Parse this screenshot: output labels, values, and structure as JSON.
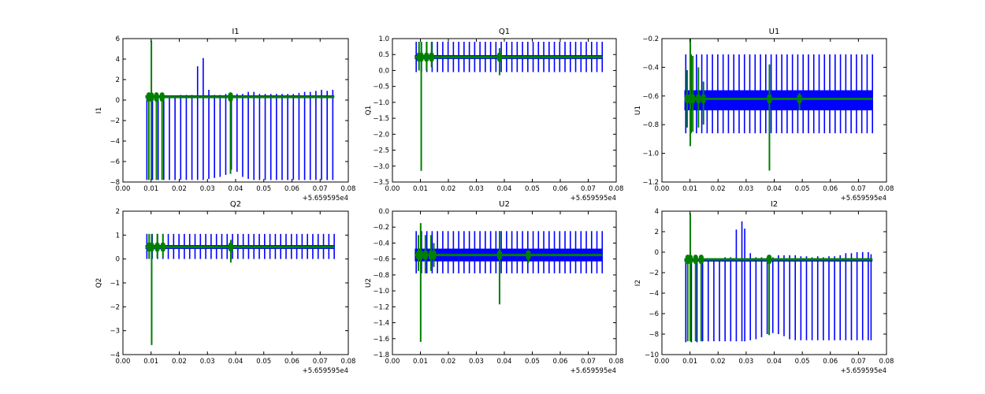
{
  "colors": {
    "series_a": "#0000ff",
    "series_b": "#008000",
    "axes": "#000000",
    "background": "#ffffff"
  },
  "x_offset_text": "+5.659595e4",
  "chart_data": [
    {
      "type": "line",
      "title": "I1",
      "ylabel": "I1",
      "xlim": [
        0.0,
        0.08
      ],
      "ylim": [
        -8,
        6
      ],
      "x_ticks": [
        "0.00",
        "0.01",
        "0.02",
        "0.03",
        "0.04",
        "0.05",
        "0.06",
        "0.07",
        "0.08"
      ],
      "y_ticks": [
        "−8",
        "−6",
        "−4",
        "−2",
        "0",
        "2",
        "4",
        "6"
      ],
      "x_range": [
        0.008,
        0.075
      ],
      "series": [
        {
          "name": "blue",
          "color": "#0000ff",
          "baseline": 0.35,
          "spikes": [
            {
              "x": 0.0085,
              "lo": -7.8,
              "hi": 0.3
            },
            {
              "x": 0.0105,
              "lo": -7.8,
              "hi": 0.3
            },
            {
              "x": 0.0125,
              "lo": -7.8,
              "hi": 0.3
            },
            {
              "x": 0.0145,
              "lo": -7.8,
              "hi": 0.3
            },
            {
              "x": 0.0165,
              "lo": -7.8,
              "hi": 0.3
            },
            {
              "x": 0.0185,
              "lo": -7.8,
              "hi": 0.4
            },
            {
              "x": 0.0205,
              "lo": -7.8,
              "hi": 0.5
            },
            {
              "x": 0.0225,
              "lo": -7.8,
              "hi": 0.5
            },
            {
              "x": 0.0245,
              "lo": -7.8,
              "hi": 0.5
            },
            {
              "x": 0.0265,
              "lo": -7.8,
              "hi": 3.3
            },
            {
              "x": 0.0285,
              "lo": -7.8,
              "hi": 4.1
            },
            {
              "x": 0.0305,
              "lo": -7.7,
              "hi": 1.0
            },
            {
              "x": 0.0325,
              "lo": -7.6,
              "hi": 0.5
            },
            {
              "x": 0.0345,
              "lo": -7.5,
              "hi": 0.5
            },
            {
              "x": 0.0365,
              "lo": -7.3,
              "hi": 0.6
            },
            {
              "x": 0.0385,
              "lo": -6.8,
              "hi": 0.6
            },
            {
              "x": 0.0405,
              "lo": -7.0,
              "hi": 0.6
            },
            {
              "x": 0.0425,
              "lo": -7.5,
              "hi": 0.6
            },
            {
              "x": 0.0445,
              "lo": -7.7,
              "hi": 0.8
            },
            {
              "x": 0.0465,
              "lo": -7.8,
              "hi": 0.8
            },
            {
              "x": 0.0485,
              "lo": -7.8,
              "hi": 0.6
            },
            {
              "x": 0.0505,
              "lo": -7.8,
              "hi": 0.6
            },
            {
              "x": 0.0525,
              "lo": -7.8,
              "hi": 0.6
            },
            {
              "x": 0.0545,
              "lo": -7.8,
              "hi": 0.6
            },
            {
              "x": 0.0565,
              "lo": -7.8,
              "hi": 0.6
            },
            {
              "x": 0.0585,
              "lo": -7.8,
              "hi": 0.6
            },
            {
              "x": 0.0605,
              "lo": -7.8,
              "hi": 0.6
            },
            {
              "x": 0.0625,
              "lo": -7.8,
              "hi": 0.7
            },
            {
              "x": 0.0645,
              "lo": -7.8,
              "hi": 0.8
            },
            {
              "x": 0.0665,
              "lo": -7.8,
              "hi": 0.8
            },
            {
              "x": 0.0685,
              "lo": -7.8,
              "hi": 0.9
            },
            {
              "x": 0.0705,
              "lo": -7.8,
              "hi": 1.0
            },
            {
              "x": 0.0725,
              "lo": -7.8,
              "hi": 0.9
            },
            {
              "x": 0.0745,
              "lo": -7.8,
              "hi": 1.0
            }
          ]
        },
        {
          "name": "green",
          "color": "#008000",
          "baseline": 0.3,
          "spikes": [
            {
              "x": 0.0092,
              "lo": -7.8,
              "hi": 0.5
            },
            {
              "x": 0.0101,
              "lo": -7.8,
              "hi": 5.8
            },
            {
              "x": 0.0119,
              "lo": -7.8,
              "hi": 0.5
            },
            {
              "x": 0.0139,
              "lo": -7.8,
              "hi": 0.5
            },
            {
              "x": 0.0382,
              "lo": -7.2,
              "hi": 0.6
            }
          ]
        }
      ]
    },
    {
      "type": "line",
      "title": "Q1",
      "ylabel": "Q1",
      "xlim": [
        0.0,
        0.08
      ],
      "ylim": [
        -3.5,
        1.0
      ],
      "x_ticks": [
        "0.00",
        "0.01",
        "0.02",
        "0.03",
        "0.04",
        "0.05",
        "0.06",
        "0.07",
        "0.08"
      ],
      "y_ticks": [
        "−3.5",
        "−3.0",
        "−2.5",
        "−2.0",
        "−1.5",
        "−1.0",
        "−0.5",
        "0.0",
        "0.5",
        "1.0"
      ],
      "x_range": [
        0.008,
        0.075
      ],
      "series": [
        {
          "name": "blue",
          "color": "#0000ff",
          "baseline": 0.42,
          "band": [
            0.36,
            0.48
          ],
          "spikes_auto": {
            "start": 0.0085,
            "step": 0.0019,
            "lo": -0.05,
            "hi": 0.9
          }
        },
        {
          "name": "green",
          "color": "#008000",
          "baseline": 0.42,
          "spikes": [
            {
              "x": 0.0095,
              "lo": 0.0,
              "hi": 0.9
            },
            {
              "x": 0.0103,
              "lo": -3.15,
              "hi": 0.9
            },
            {
              "x": 0.0122,
              "lo": 0.0,
              "hi": 0.9
            },
            {
              "x": 0.014,
              "lo": 0.1,
              "hi": 0.9
            },
            {
              "x": 0.0383,
              "lo": -0.15,
              "hi": 0.7
            }
          ]
        }
      ]
    },
    {
      "type": "line",
      "title": "U1",
      "ylabel": "U1",
      "xlim": [
        0.0,
        0.08
      ],
      "ylim": [
        -1.2,
        -0.2
      ],
      "x_ticks": [
        "0.00",
        "0.01",
        "0.02",
        "0.03",
        "0.04",
        "0.05",
        "0.06",
        "0.07",
        "0.08"
      ],
      "y_ticks": [
        "−1.2",
        "−1.0",
        "−0.8",
        "−0.6",
        "−0.4",
        "−0.2"
      ],
      "x_range": [
        0.008,
        0.075
      ],
      "series": [
        {
          "name": "blue",
          "color": "#0000ff",
          "baseline": -0.63,
          "band": [
            -0.7,
            -0.56
          ],
          "spikes_auto": {
            "start": 0.0085,
            "step": 0.0019,
            "lo": -0.86,
            "hi": -0.31
          }
        },
        {
          "name": "green",
          "color": "#008000",
          "baseline": -0.62,
          "spikes": [
            {
              "x": 0.009,
              "lo": -0.82,
              "hi": -0.42
            },
            {
              "x": 0.0101,
              "lo": -0.95,
              "hi": -0.2
            },
            {
              "x": 0.011,
              "lo": -0.85,
              "hi": -0.32
            },
            {
              "x": 0.013,
              "lo": -0.82,
              "hi": -0.4
            },
            {
              "x": 0.0148,
              "lo": -0.8,
              "hi": -0.5
            },
            {
              "x": 0.0383,
              "lo": -1.12,
              "hi": -0.38
            },
            {
              "x": 0.049,
              "lo": -0.7,
              "hi": -0.58
            }
          ]
        }
      ]
    },
    {
      "type": "line",
      "title": "Q2",
      "ylabel": "Q2",
      "xlim": [
        0.0,
        0.08
      ],
      "ylim": [
        -4,
        2
      ],
      "x_ticks": [
        "0.00",
        "0.01",
        "0.02",
        "0.03",
        "0.04",
        "0.05",
        "0.06",
        "0.07",
        "0.08"
      ],
      "y_ticks": [
        "−4",
        "−3",
        "−2",
        "−1",
        "0",
        "1",
        "2"
      ],
      "x_range": [
        0.008,
        0.075
      ],
      "series": [
        {
          "name": "blue",
          "color": "#0000ff",
          "baseline": 0.5,
          "band": [
            0.42,
            0.58
          ],
          "spikes_auto": {
            "start": 0.0085,
            "step": 0.0019,
            "lo": 0.0,
            "hi": 1.05
          }
        },
        {
          "name": "green",
          "color": "#008000",
          "baseline": 0.5,
          "spikes": [
            {
              "x": 0.0093,
              "lo": 0.0,
              "hi": 1.05
            },
            {
              "x": 0.0102,
              "lo": -3.6,
              "hi": 1.05
            },
            {
              "x": 0.0122,
              "lo": 0.05,
              "hi": 1.05
            },
            {
              "x": 0.0142,
              "lo": 0.05,
              "hi": 1.05
            },
            {
              "x": 0.0383,
              "lo": -0.15,
              "hi": 0.8
            }
          ]
        }
      ]
    },
    {
      "type": "line",
      "title": "U2",
      "ylabel": "U2",
      "xlim": [
        0.0,
        0.08
      ],
      "ylim": [
        -1.8,
        0.0
      ],
      "x_ticks": [
        "0.00",
        "0.01",
        "0.02",
        "0.03",
        "0.04",
        "0.05",
        "0.06",
        "0.07",
        "0.08"
      ],
      "y_ticks": [
        "−1.8",
        "−1.6",
        "−1.4",
        "−1.2",
        "−1.0",
        "−0.8",
        "−0.6",
        "−0.4",
        "−0.2",
        "0.0"
      ],
      "x_range": [
        0.008,
        0.075
      ],
      "series": [
        {
          "name": "blue",
          "color": "#0000ff",
          "baseline": -0.55,
          "band": [
            -0.63,
            -0.47
          ],
          "spikes_auto": {
            "start": 0.0085,
            "step": 0.0019,
            "lo": -0.78,
            "hi": -0.25
          }
        },
        {
          "name": "green",
          "color": "#008000",
          "baseline": -0.55,
          "spikes": [
            {
              "x": 0.0093,
              "lo": -0.75,
              "hi": -0.3
            },
            {
              "x": 0.0101,
              "lo": -1.64,
              "hi": -0.15
            },
            {
              "x": 0.0118,
              "lo": -0.78,
              "hi": -0.3
            },
            {
              "x": 0.0138,
              "lo": -0.75,
              "hi": -0.3
            },
            {
              "x": 0.0148,
              "lo": -0.7,
              "hi": -0.4
            },
            {
              "x": 0.0383,
              "lo": -1.17,
              "hi": -0.25
            },
            {
              "x": 0.0486,
              "lo": -0.65,
              "hi": -0.5
            }
          ]
        }
      ]
    },
    {
      "type": "line",
      "title": "I2",
      "ylabel": "I2",
      "xlim": [
        0.0,
        0.08
      ],
      "ylim": [
        -10,
        4
      ],
      "x_ticks": [
        "0.00",
        "0.01",
        "0.02",
        "0.03",
        "0.04",
        "0.05",
        "0.06",
        "0.07",
        "0.08"
      ],
      "y_ticks": [
        "−10",
        "−8",
        "−6",
        "−4",
        "−2",
        "0",
        "2",
        "4"
      ],
      "x_range": [
        0.008,
        0.075
      ],
      "series": [
        {
          "name": "blue",
          "color": "#0000ff",
          "baseline": -0.8,
          "spikes": [
            {
              "x": 0.0085,
              "lo": -8.8,
              "hi": -0.7
            },
            {
              "x": 0.0105,
              "lo": -8.8,
              "hi": -0.7
            },
            {
              "x": 0.0125,
              "lo": -8.8,
              "hi": -0.7
            },
            {
              "x": 0.0145,
              "lo": -8.7,
              "hi": -0.7
            },
            {
              "x": 0.0165,
              "lo": -8.7,
              "hi": -0.6
            },
            {
              "x": 0.0185,
              "lo": -8.7,
              "hi": -0.6
            },
            {
              "x": 0.0205,
              "lo": -8.7,
              "hi": -0.6
            },
            {
              "x": 0.0225,
              "lo": -8.7,
              "hi": -0.5
            },
            {
              "x": 0.0245,
              "lo": -8.7,
              "hi": -0.5
            },
            {
              "x": 0.0265,
              "lo": -8.7,
              "hi": 2.2
            },
            {
              "x": 0.0285,
              "lo": -8.7,
              "hi": 3.0
            },
            {
              "x": 0.0295,
              "lo": -8.7,
              "hi": 2.3
            },
            {
              "x": 0.0315,
              "lo": -8.6,
              "hi": -0.1
            },
            {
              "x": 0.0335,
              "lo": -8.5,
              "hi": -0.5
            },
            {
              "x": 0.0355,
              "lo": -8.3,
              "hi": -0.5
            },
            {
              "x": 0.0375,
              "lo": -8.0,
              "hi": -0.5
            },
            {
              "x": 0.0395,
              "lo": -7.9,
              "hi": -0.5
            },
            {
              "x": 0.0415,
              "lo": -8.0,
              "hi": -0.3
            },
            {
              "x": 0.0435,
              "lo": -8.2,
              "hi": -0.3
            },
            {
              "x": 0.0455,
              "lo": -8.5,
              "hi": -0.3
            },
            {
              "x": 0.0475,
              "lo": -8.6,
              "hi": -0.3
            },
            {
              "x": 0.0495,
              "lo": -8.6,
              "hi": -0.4
            },
            {
              "x": 0.0515,
              "lo": -8.6,
              "hi": -0.4
            },
            {
              "x": 0.0535,
              "lo": -8.6,
              "hi": -0.5
            },
            {
              "x": 0.0555,
              "lo": -8.6,
              "hi": -0.4
            },
            {
              "x": 0.0575,
              "lo": -8.6,
              "hi": -0.5
            },
            {
              "x": 0.0595,
              "lo": -8.6,
              "hi": -0.4
            },
            {
              "x": 0.0615,
              "lo": -8.6,
              "hi": -0.4
            },
            {
              "x": 0.0635,
              "lo": -8.6,
              "hi": -0.3
            },
            {
              "x": 0.0655,
              "lo": -8.6,
              "hi": -0.1
            },
            {
              "x": 0.0675,
              "lo": -8.6,
              "hi": -0.1
            },
            {
              "x": 0.0695,
              "lo": -8.6,
              "hi": 0.0
            },
            {
              "x": 0.0715,
              "lo": -8.6,
              "hi": 0.0
            },
            {
              "x": 0.0735,
              "lo": -8.6,
              "hi": 0.0
            },
            {
              "x": 0.0745,
              "lo": -8.6,
              "hi": -0.2
            }
          ]
        },
        {
          "name": "green",
          "color": "#008000",
          "baseline": -0.7,
          "spikes": [
            {
              "x": 0.0092,
              "lo": -8.7,
              "hi": -0.5
            },
            {
              "x": 0.0101,
              "lo": -8.7,
              "hi": 3.8
            },
            {
              "x": 0.012,
              "lo": -8.7,
              "hi": -0.5
            },
            {
              "x": 0.014,
              "lo": -8.7,
              "hi": -0.5
            },
            {
              "x": 0.0382,
              "lo": -8.1,
              "hi": -0.5
            }
          ]
        }
      ]
    }
  ]
}
